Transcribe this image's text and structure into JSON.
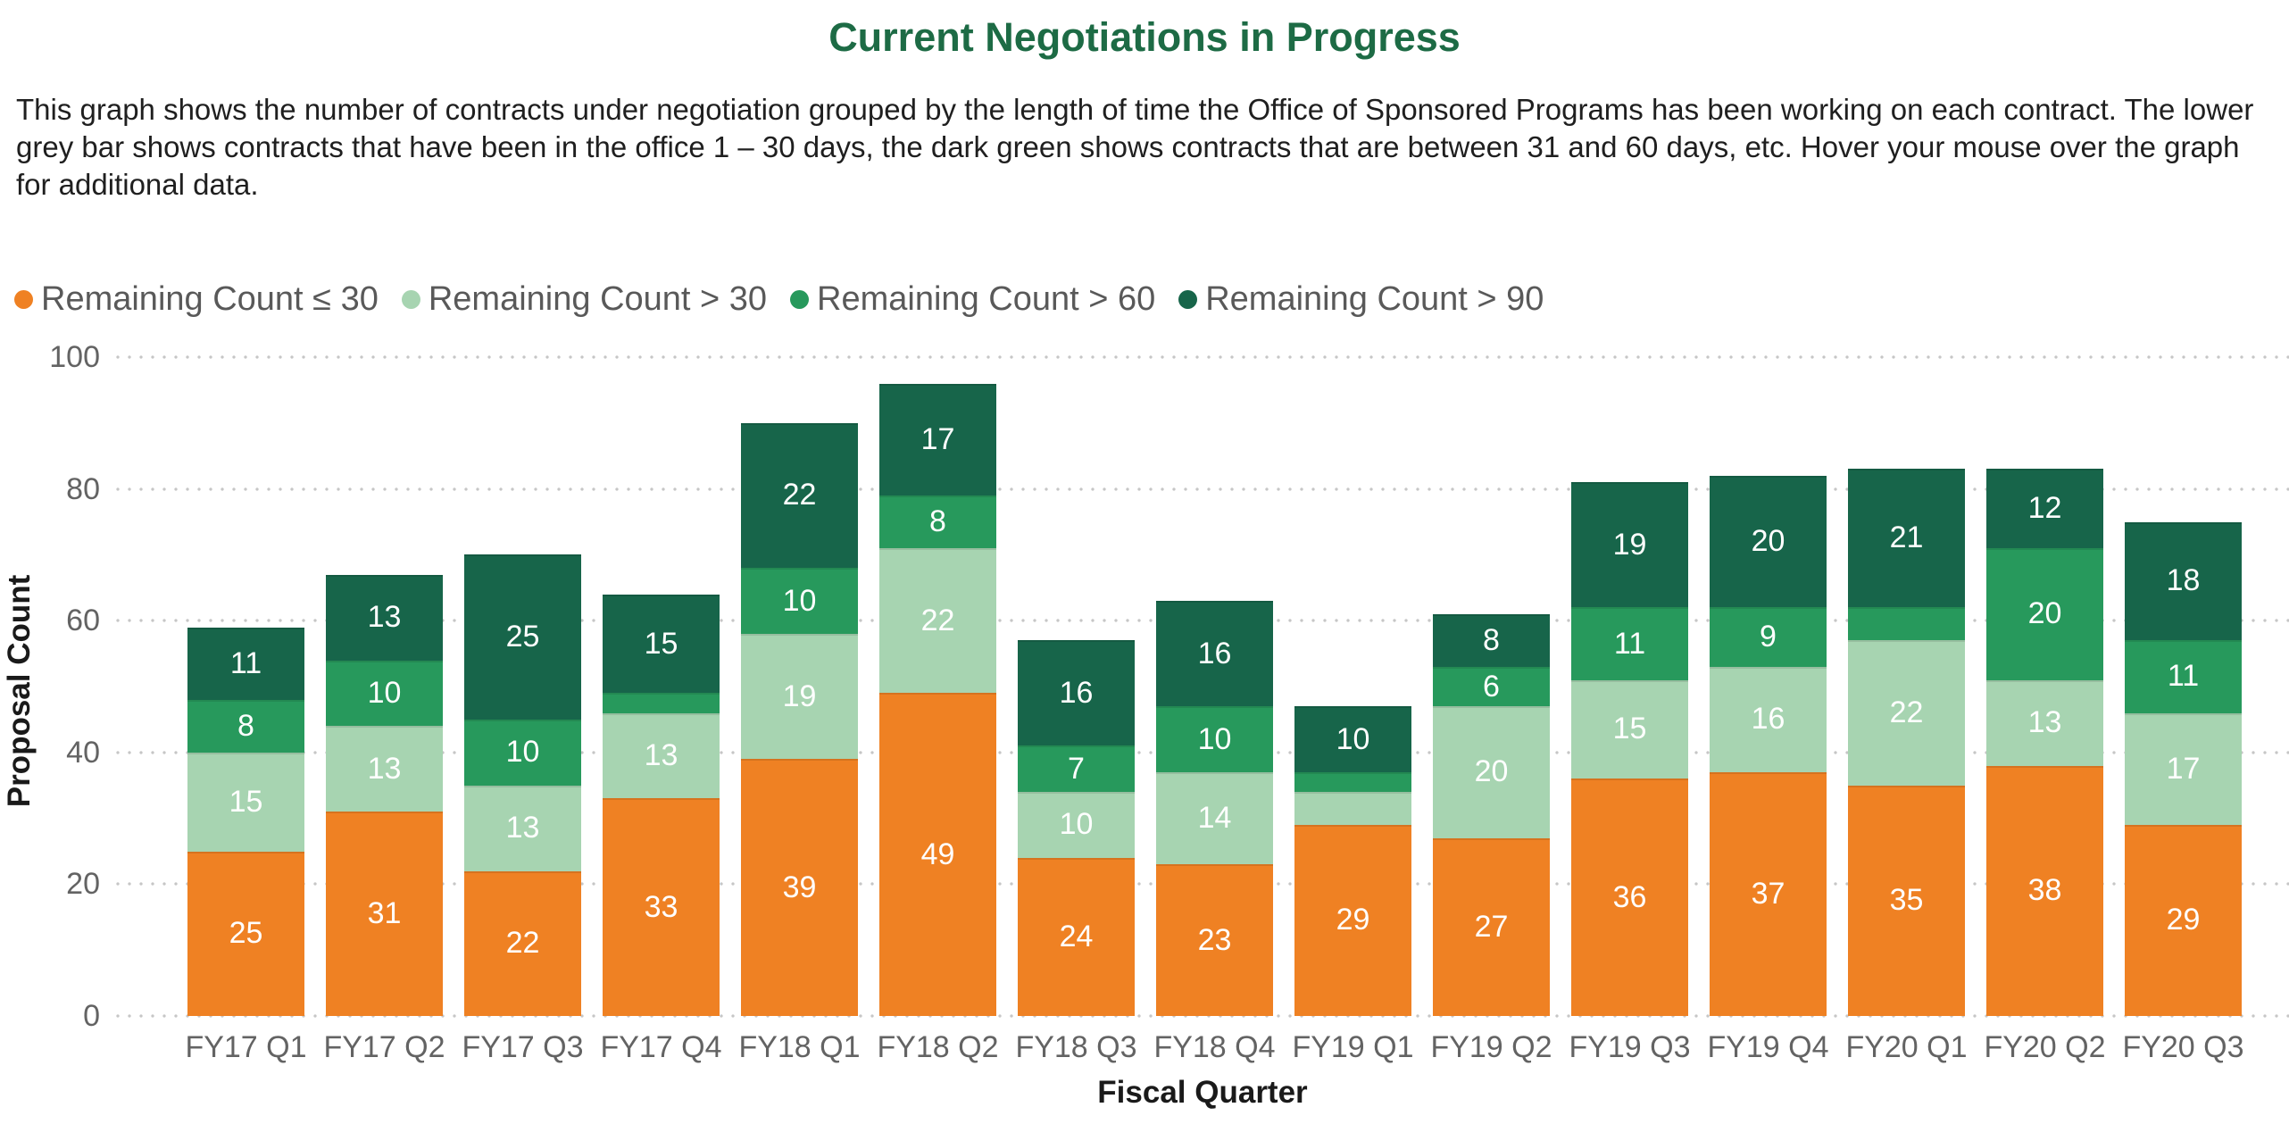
{
  "page": {
    "title": "Current Negotiations in Progress",
    "description": "This graph shows the number of contracts under negotiation grouped by the length of time the Office of Sponsored Programs has been working on each contract. The lower grey bar shows contracts that have been in the office 1 – 30 days, the dark green shows contracts that are between 31 and 60 days, etc.  Hover your mouse over the graph for additional data."
  },
  "colors": {
    "title_green": "#1D6B45",
    "orange": "#EF8123",
    "light_green": "#A7D4B1",
    "medium_green": "#27995C",
    "dark_green": "#17654A",
    "axis_text": "#636363",
    "legend_text": "#595959",
    "gridline": "#c6c6c6"
  },
  "chart_data": {
    "type": "bar",
    "stacked": true,
    "title": "Current Negotiations in Progress",
    "xlabel": "Fiscal Quarter",
    "ylabel": "Proposal Count",
    "ylim": [
      0,
      100
    ],
    "yticks": [
      0,
      20,
      40,
      60,
      80,
      100
    ],
    "grid": "horizontal dotted",
    "legend_position": "top-left",
    "data_label_min": 6,
    "categories": [
      "FY17 Q1",
      "FY17 Q2",
      "FY17 Q3",
      "FY17 Q4",
      "FY18 Q1",
      "FY18 Q2",
      "FY18 Q3",
      "FY18 Q4",
      "FY19 Q1",
      "FY19 Q2",
      "FY19 Q3",
      "FY19 Q4",
      "FY20 Q1",
      "FY20 Q2",
      "FY20 Q3"
    ],
    "series": [
      {
        "name": "Remaining Count ≤ 30",
        "color": "#EF8123",
        "values": [
          25,
          31,
          22,
          33,
          39,
          49,
          24,
          23,
          29,
          27,
          36,
          37,
          35,
          38,
          29
        ]
      },
      {
        "name": "Remaining Count > 30",
        "color": "#A7D4B1",
        "values": [
          15,
          13,
          13,
          13,
          19,
          22,
          10,
          14,
          5,
          20,
          15,
          16,
          22,
          13,
          17
        ]
      },
      {
        "name": "Remaining Count > 60",
        "color": "#27995C",
        "values": [
          8,
          10,
          10,
          3,
          10,
          8,
          7,
          10,
          3,
          6,
          11,
          9,
          5,
          20,
          11
        ]
      },
      {
        "name": "Remaining Count > 90",
        "color": "#17654A",
        "values": [
          11,
          13,
          25,
          15,
          22,
          17,
          16,
          16,
          10,
          8,
          19,
          20,
          21,
          12,
          18
        ]
      }
    ],
    "totals": [
      59,
      67,
      70,
      64,
      90,
      96,
      57,
      63,
      47,
      61,
      81,
      82,
      83,
      83,
      75
    ]
  }
}
